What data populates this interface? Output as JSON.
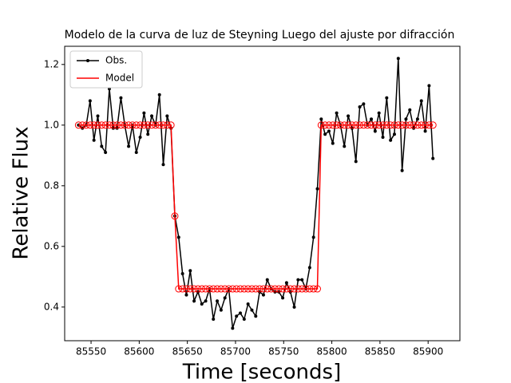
{
  "chart_data": {
    "type": "line",
    "title": "Modelo de la curva de luz de Steyning Luego del ajuste por difracción",
    "xlabel": "Time [seconds]",
    "ylabel": "Relative Flux",
    "x": [
      85537,
      85541,
      85545,
      85549,
      85553,
      85557,
      85561,
      85565,
      85569,
      85573,
      85577,
      85581,
      85585,
      85589,
      85593,
      85597,
      85601,
      85605,
      85609,
      85613,
      85617,
      85621,
      85625,
      85629,
      85633,
      85637,
      85641,
      85645,
      85649,
      85653,
      85657,
      85661,
      85665,
      85669,
      85673,
      85677,
      85681,
      85685,
      85689,
      85693,
      85697,
      85701,
      85705,
      85709,
      85713,
      85717,
      85721,
      85725,
      85729,
      85733,
      85737,
      85741,
      85745,
      85749,
      85753,
      85757,
      85761,
      85765,
      85769,
      85773,
      85777,
      85781,
      85785,
      85789,
      85793,
      85797,
      85801,
      85805,
      85809,
      85813,
      85817,
      85821,
      85825,
      85829,
      85833,
      85837,
      85841,
      85845,
      85849,
      85853,
      85857,
      85861,
      85865,
      85869,
      85873,
      85877,
      85881,
      85885,
      85889,
      85893,
      85897,
      85901,
      85905
    ],
    "series": [
      {
        "name": "Obs.",
        "color": "#000000",
        "marker": "dot",
        "values": [
          1.0,
          0.99,
          1.0,
          1.08,
          0.95,
          1.03,
          0.93,
          0.91,
          1.12,
          0.99,
          0.99,
          1.09,
          1.0,
          0.93,
          1.0,
          0.91,
          0.96,
          1.04,
          0.97,
          1.03,
          1.0,
          1.1,
          0.87,
          1.03,
          0.99,
          0.7,
          0.63,
          0.51,
          0.44,
          0.52,
          0.42,
          0.45,
          0.41,
          0.42,
          0.46,
          0.36,
          0.42,
          0.39,
          0.43,
          0.46,
          0.33,
          0.37,
          0.38,
          0.36,
          0.41,
          0.39,
          0.37,
          0.45,
          0.44,
          0.49,
          0.46,
          0.45,
          0.45,
          0.43,
          0.48,
          0.45,
          0.4,
          0.49,
          0.49,
          0.46,
          0.53,
          0.63,
          0.79,
          1.02,
          0.97,
          0.98,
          0.94,
          1.04,
          1.0,
          0.93,
          1.03,
          0.99,
          0.88,
          1.06,
          1.07,
          1.0,
          1.02,
          0.98,
          1.04,
          0.96,
          1.09,
          0.95,
          0.97,
          1.22,
          0.85,
          1.02,
          1.05,
          0.99,
          1.02,
          1.08,
          0.98,
          1.13,
          0.89
        ]
      },
      {
        "name": "Model",
        "color": "#ff0000",
        "marker": "open-circle",
        "values": [
          1.0,
          1.0,
          1.0,
          1.0,
          1.0,
          1.0,
          1.0,
          1.0,
          1.0,
          1.0,
          1.0,
          1.0,
          1.0,
          1.0,
          1.0,
          1.0,
          1.0,
          1.0,
          1.0,
          1.0,
          1.0,
          1.0,
          1.0,
          1.0,
          1.0,
          0.7,
          0.46,
          0.46,
          0.46,
          0.46,
          0.46,
          0.46,
          0.46,
          0.46,
          0.46,
          0.46,
          0.46,
          0.46,
          0.46,
          0.46,
          0.46,
          0.46,
          0.46,
          0.46,
          0.46,
          0.46,
          0.46,
          0.46,
          0.46,
          0.46,
          0.46,
          0.46,
          0.46,
          0.46,
          0.46,
          0.46,
          0.46,
          0.46,
          0.46,
          0.46,
          0.46,
          0.46,
          0.46,
          1.0,
          1.0,
          1.0,
          1.0,
          1.0,
          1.0,
          1.0,
          1.0,
          1.0,
          1.0,
          1.0,
          1.0,
          1.0,
          1.0,
          1.0,
          1.0,
          1.0,
          1.0,
          1.0,
          1.0,
          1.0,
          1.0,
          1.0,
          1.0,
          1.0,
          1.0,
          1.0,
          1.0,
          1.0,
          1.0
        ]
      }
    ],
    "xlim": [
      85522.6,
      85933
    ],
    "ylim": [
      0.289,
      1.26
    ],
    "xticks": [
      85550,
      85600,
      85650,
      85700,
      85750,
      85800,
      85850,
      85900
    ],
    "yticks": [
      0.4,
      0.6,
      0.8,
      {
        "value": 1.0,
        "label": "1.0"
      },
      1.2
    ],
    "legend": "upper left"
  }
}
